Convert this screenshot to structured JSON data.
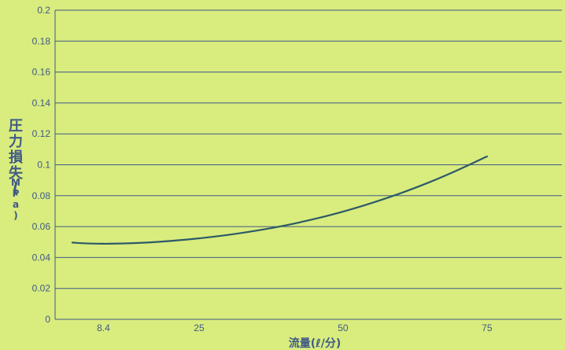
{
  "chart_data": {
    "type": "line",
    "xlabel": "流量(ℓ/分)",
    "ylabel": "圧力損失(MPa)",
    "xlim": [
      0,
      88
    ],
    "ylim": [
      0,
      0.2
    ],
    "x_ticks": [
      {
        "value": 8.4,
        "label": "8.4"
      },
      {
        "value": 25,
        "label": "25"
      },
      {
        "value": 50,
        "label": "50"
      },
      {
        "value": 75,
        "label": "75"
      }
    ],
    "y_ticks": [
      {
        "value": 0,
        "label": "0"
      },
      {
        "value": 0.02,
        "label": "0.02"
      },
      {
        "value": 0.04,
        "label": "0.04"
      },
      {
        "value": 0.06,
        "label": "0.06"
      },
      {
        "value": 0.08,
        "label": "0.08"
      },
      {
        "value": 0.1,
        "label": "0.1"
      },
      {
        "value": 0.12,
        "label": "0.12"
      },
      {
        "value": 0.14,
        "label": "0.14"
      },
      {
        "value": 0.16,
        "label": "0.16"
      },
      {
        "value": 0.18,
        "label": "0.18"
      },
      {
        "value": 0.2,
        "label": "0.2"
      }
    ],
    "grid": "horizontal",
    "series": [
      {
        "x": [
          3,
          5,
          8.4,
          12,
          16,
          20,
          25,
          30,
          35,
          40,
          45,
          50,
          55,
          60,
          65,
          70,
          75
        ],
        "y": [
          0.0497,
          0.0492,
          0.0489,
          0.0491,
          0.0497,
          0.0507,
          0.0524,
          0.0546,
          0.0574,
          0.0608,
          0.0649,
          0.0697,
          0.0753,
          0.0816,
          0.0887,
          0.0967,
          0.1054
        ]
      }
    ],
    "colors": {
      "background": "#d9ec7e",
      "grid": "#3f5a86",
      "line": "#2c5a67",
      "text": "#3f5a86"
    }
  }
}
